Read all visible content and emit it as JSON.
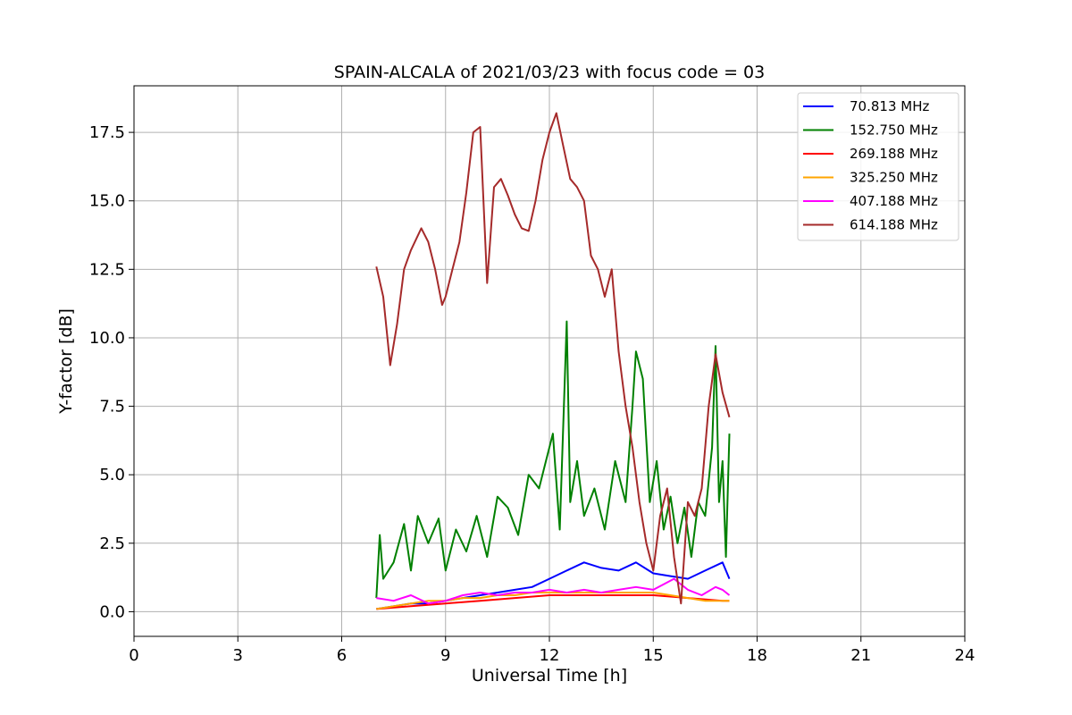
{
  "chart_data": {
    "type": "line",
    "title": "SPAIN-ALCALA of 2021/03/23 with focus code = 03",
    "xlabel": "Universal Time [h]",
    "ylabel": "Y-factor [dB]",
    "xlim": [
      0,
      24
    ],
    "ylim": [
      -0.9,
      19.2
    ],
    "xticks": [
      0,
      3,
      6,
      9,
      12,
      15,
      18,
      21,
      24
    ],
    "xtick_labels": [
      "0",
      "3",
      "6",
      "9",
      "12",
      "15",
      "18",
      "21",
      "24"
    ],
    "yticks": [
      0,
      2.5,
      5,
      7.5,
      10,
      12.5,
      15,
      17.5
    ],
    "ytick_labels": [
      "0.0",
      "2.5",
      "5.0",
      "7.5",
      "10.0",
      "12.5",
      "15.0",
      "17.5"
    ],
    "grid": true,
    "legend_position": "top-right",
    "series": [
      {
        "name": " 70.813 MHz",
        "color": "#0000ff",
        "x": [
          7.0,
          7.5,
          8.0,
          8.5,
          9.0,
          9.5,
          10.0,
          10.5,
          11.0,
          11.5,
          12.0,
          12.5,
          13.0,
          13.5,
          14.0,
          14.5,
          15.0,
          15.5,
          16.0,
          16.5,
          17.0,
          17.2
        ],
        "y": [
          0.1,
          0.2,
          0.3,
          0.3,
          0.4,
          0.5,
          0.6,
          0.7,
          0.8,
          0.9,
          1.2,
          1.5,
          1.8,
          1.6,
          1.5,
          1.8,
          1.4,
          1.3,
          1.2,
          1.5,
          1.8,
          1.2
        ]
      },
      {
        "name": "152.750 MHz",
        "color": "#008000",
        "x": [
          7.0,
          7.1,
          7.2,
          7.5,
          7.8,
          8.0,
          8.2,
          8.5,
          8.8,
          9.0,
          9.3,
          9.6,
          9.9,
          10.2,
          10.5,
          10.8,
          11.1,
          11.4,
          11.7,
          11.9,
          12.1,
          12.3,
          12.5,
          12.6,
          12.8,
          13.0,
          13.3,
          13.6,
          13.9,
          14.2,
          14.4,
          14.5,
          14.7,
          14.9,
          15.1,
          15.3,
          15.5,
          15.7,
          15.9,
          16.1,
          16.3,
          16.5,
          16.7,
          16.8,
          16.9,
          17.0,
          17.1,
          17.2
        ],
        "y": [
          0.5,
          2.8,
          1.2,
          1.8,
          3.2,
          1.5,
          3.5,
          2.5,
          3.4,
          1.5,
          3.0,
          2.2,
          3.5,
          2.0,
          4.2,
          3.8,
          2.8,
          5.0,
          4.5,
          5.5,
          6.5,
          3.0,
          10.6,
          4.0,
          5.5,
          3.5,
          4.5,
          3.0,
          5.5,
          4.0,
          7.5,
          9.5,
          8.5,
          4.0,
          5.5,
          3.0,
          4.2,
          2.5,
          3.8,
          2.0,
          4.0,
          3.5,
          6.0,
          9.7,
          4.0,
          5.5,
          2.0,
          6.5
        ]
      },
      {
        "name": "269.188 MHz",
        "color": "#ff0000",
        "x": [
          7.0,
          8.0,
          9.0,
          10.0,
          11.0,
          12.0,
          13.0,
          14.0,
          15.0,
          16.0,
          17.0,
          17.2
        ],
        "y": [
          0.1,
          0.2,
          0.3,
          0.4,
          0.5,
          0.6,
          0.6,
          0.6,
          0.6,
          0.5,
          0.4,
          0.4
        ]
      },
      {
        "name": "325.250 MHz",
        "color": "#ffa500",
        "x": [
          7.0,
          7.5,
          8.0,
          8.5,
          9.0,
          9.5,
          10.0,
          10.5,
          11.0,
          11.5,
          12.0,
          12.5,
          13.0,
          13.5,
          14.0,
          14.5,
          15.0,
          15.5,
          16.0,
          16.5,
          17.0,
          17.2
        ],
        "y": [
          0.1,
          0.2,
          0.3,
          0.4,
          0.4,
          0.5,
          0.5,
          0.6,
          0.6,
          0.7,
          0.7,
          0.7,
          0.7,
          0.7,
          0.7,
          0.7,
          0.7,
          0.6,
          0.5,
          0.4,
          0.4,
          0.4
        ]
      },
      {
        "name": "407.188 MHz",
        "color": "#ff00ff",
        "x": [
          7.0,
          7.5,
          8.0,
          8.5,
          9.0,
          9.5,
          10.0,
          10.5,
          11.0,
          11.5,
          12.0,
          12.5,
          13.0,
          13.5,
          14.0,
          14.5,
          15.0,
          15.3,
          15.6,
          16.0,
          16.4,
          16.8,
          17.0,
          17.2
        ],
        "y": [
          0.5,
          0.4,
          0.6,
          0.3,
          0.4,
          0.6,
          0.7,
          0.6,
          0.7,
          0.7,
          0.8,
          0.7,
          0.8,
          0.7,
          0.8,
          0.9,
          0.8,
          1.0,
          1.2,
          0.8,
          0.6,
          0.9,
          0.8,
          0.6
        ]
      },
      {
        "name": "614.188 MHz",
        "color": "#a52a2a",
        "x": [
          7.0,
          7.2,
          7.4,
          7.6,
          7.8,
          8.0,
          8.3,
          8.5,
          8.7,
          8.9,
          9.0,
          9.2,
          9.4,
          9.6,
          9.8,
          10.0,
          10.2,
          10.4,
          10.6,
          10.8,
          11.0,
          11.2,
          11.4,
          11.6,
          11.8,
          12.0,
          12.2,
          12.4,
          12.6,
          12.8,
          13.0,
          13.2,
          13.4,
          13.6,
          13.8,
          14.0,
          14.2,
          14.4,
          14.6,
          14.8,
          15.0,
          15.2,
          15.4,
          15.6,
          15.8,
          16.0,
          16.2,
          16.4,
          16.6,
          16.8,
          17.0,
          17.2
        ],
        "y": [
          12.6,
          11.5,
          9.0,
          10.5,
          12.5,
          13.2,
          14.0,
          13.5,
          12.5,
          11.2,
          11.5,
          12.5,
          13.5,
          15.3,
          17.5,
          17.7,
          12.0,
          15.5,
          15.8,
          15.2,
          14.5,
          14.0,
          13.9,
          15.0,
          16.5,
          17.5,
          18.2,
          17.0,
          15.8,
          15.5,
          15.0,
          13.0,
          12.5,
          11.5,
          12.5,
          9.5,
          7.5,
          6.0,
          4.0,
          2.5,
          1.5,
          3.5,
          4.5,
          2.0,
          0.3,
          4.0,
          3.5,
          4.5,
          7.5,
          9.4,
          8.0,
          7.1
        ]
      }
    ]
  }
}
